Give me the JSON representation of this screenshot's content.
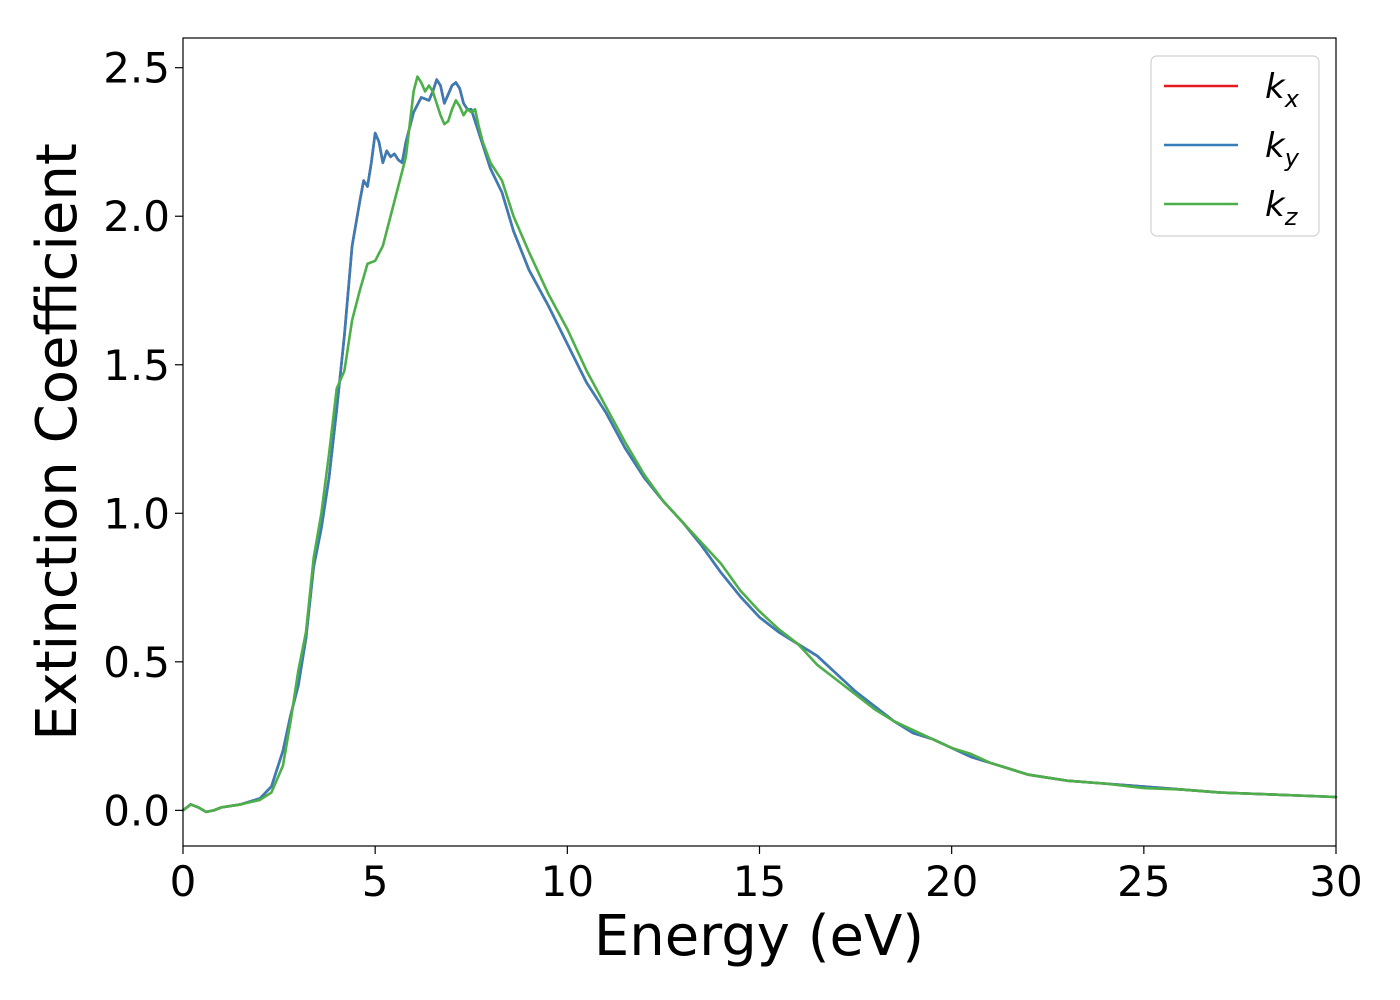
{
  "chart_data": {
    "type": "line",
    "xlabel": "Energy (eV)",
    "ylabel": "Extinction Coefficient",
    "xlim": [
      0,
      30
    ],
    "ylim": [
      -0.12,
      2.6
    ],
    "xticks": [
      0,
      5,
      10,
      15,
      20,
      25,
      30
    ],
    "xtick_labels": [
      "0",
      "5",
      "10",
      "15",
      "20",
      "25",
      "30"
    ],
    "yticks": [
      0.0,
      0.5,
      1.0,
      1.5,
      2.0,
      2.5
    ],
    "ytick_labels": [
      "0.0",
      "0.5",
      "1.0",
      "1.5",
      "2.0",
      "2.5"
    ],
    "grid": false,
    "legend_position": "top-right",
    "series": [
      {
        "name": "k_x",
        "legend_base": "k",
        "legend_sub": "x",
        "color": "#e41a1c",
        "x": [
          0,
          0.2,
          0.4,
          0.6,
          0.8,
          1.0,
          1.5,
          2.0,
          2.3,
          2.6,
          2.8,
          3.0,
          3.2,
          3.4,
          3.6,
          3.8,
          4.0,
          4.2,
          4.4,
          4.6,
          4.7,
          4.8,
          4.9,
          5.0,
          5.1,
          5.2,
          5.3,
          5.4,
          5.5,
          5.6,
          5.7,
          5.8,
          5.9,
          6.0,
          6.2,
          6.4,
          6.5,
          6.6,
          6.7,
          6.8,
          6.9,
          7.0,
          7.1,
          7.2,
          7.3,
          7.4,
          7.5,
          7.6,
          7.8,
          8.0,
          8.3,
          8.6,
          9.0,
          9.5,
          10.0,
          10.5,
          11.0,
          11.5,
          12.0,
          12.5,
          13.0,
          13.5,
          14.0,
          14.5,
          15.0,
          15.5,
          16.0,
          16.5,
          17.0,
          17.5,
          18.0,
          18.5,
          19.0,
          19.5,
          20.0,
          20.5,
          21.0,
          21.5,
          22.0,
          22.5,
          23.0,
          24.0,
          25.0,
          26.0,
          27.0,
          28.0,
          29.0,
          30.0
        ],
        "values": [
          0.0,
          0.02,
          0.01,
          -0.005,
          0.0,
          0.01,
          0.02,
          0.04,
          0.08,
          0.2,
          0.32,
          0.42,
          0.58,
          0.82,
          0.95,
          1.12,
          1.35,
          1.6,
          1.9,
          2.05,
          2.12,
          2.1,
          2.18,
          2.28,
          2.25,
          2.18,
          2.22,
          2.2,
          2.21,
          2.19,
          2.18,
          2.25,
          2.3,
          2.35,
          2.4,
          2.39,
          2.42,
          2.46,
          2.44,
          2.38,
          2.41,
          2.44,
          2.45,
          2.43,
          2.38,
          2.36,
          2.36,
          2.32,
          2.24,
          2.16,
          2.08,
          1.95,
          1.82,
          1.7,
          1.57,
          1.44,
          1.34,
          1.22,
          1.12,
          1.04,
          0.97,
          0.89,
          0.8,
          0.72,
          0.65,
          0.6,
          0.56,
          0.52,
          0.46,
          0.4,
          0.35,
          0.3,
          0.26,
          0.24,
          0.21,
          0.18,
          0.16,
          0.14,
          0.12,
          0.11,
          0.1,
          0.09,
          0.08,
          0.07,
          0.06,
          0.055,
          0.05,
          0.045
        ]
      },
      {
        "name": "k_y",
        "legend_base": "k",
        "legend_sub": "y",
        "color": "#377eb8",
        "x": [
          0,
          0.2,
          0.4,
          0.6,
          0.8,
          1.0,
          1.5,
          2.0,
          2.3,
          2.6,
          2.8,
          3.0,
          3.2,
          3.4,
          3.6,
          3.8,
          4.0,
          4.2,
          4.4,
          4.6,
          4.7,
          4.8,
          4.9,
          5.0,
          5.1,
          5.2,
          5.3,
          5.4,
          5.5,
          5.6,
          5.7,
          5.8,
          5.9,
          6.0,
          6.2,
          6.4,
          6.5,
          6.6,
          6.7,
          6.8,
          6.9,
          7.0,
          7.1,
          7.2,
          7.3,
          7.4,
          7.5,
          7.6,
          7.8,
          8.0,
          8.3,
          8.6,
          9.0,
          9.5,
          10.0,
          10.5,
          11.0,
          11.5,
          12.0,
          12.5,
          13.0,
          13.5,
          14.0,
          14.5,
          15.0,
          15.5,
          16.0,
          16.5,
          17.0,
          17.5,
          18.0,
          18.5,
          19.0,
          19.5,
          20.0,
          20.5,
          21.0,
          21.5,
          22.0,
          22.5,
          23.0,
          24.0,
          25.0,
          26.0,
          27.0,
          28.0,
          29.0,
          30.0
        ],
        "values": [
          0.0,
          0.02,
          0.01,
          -0.005,
          0.0,
          0.01,
          0.02,
          0.04,
          0.08,
          0.2,
          0.32,
          0.42,
          0.58,
          0.82,
          0.95,
          1.12,
          1.35,
          1.6,
          1.9,
          2.05,
          2.12,
          2.1,
          2.18,
          2.28,
          2.25,
          2.18,
          2.22,
          2.2,
          2.21,
          2.19,
          2.18,
          2.25,
          2.3,
          2.35,
          2.4,
          2.39,
          2.42,
          2.46,
          2.44,
          2.38,
          2.41,
          2.44,
          2.45,
          2.43,
          2.38,
          2.36,
          2.36,
          2.32,
          2.24,
          2.16,
          2.08,
          1.95,
          1.82,
          1.7,
          1.57,
          1.44,
          1.34,
          1.22,
          1.12,
          1.04,
          0.97,
          0.89,
          0.8,
          0.72,
          0.65,
          0.6,
          0.56,
          0.52,
          0.46,
          0.4,
          0.35,
          0.3,
          0.26,
          0.24,
          0.21,
          0.18,
          0.16,
          0.14,
          0.12,
          0.11,
          0.1,
          0.09,
          0.08,
          0.07,
          0.06,
          0.055,
          0.05,
          0.045
        ]
      },
      {
        "name": "k_z",
        "legend_base": "k",
        "legend_sub": "z",
        "color": "#4daf4a",
        "x": [
          0,
          0.2,
          0.4,
          0.6,
          0.8,
          1.0,
          1.5,
          2.0,
          2.3,
          2.6,
          2.8,
          3.0,
          3.2,
          3.4,
          3.6,
          3.8,
          4.0,
          4.2,
          4.4,
          4.6,
          4.8,
          5.0,
          5.2,
          5.4,
          5.6,
          5.8,
          6.0,
          6.1,
          6.2,
          6.3,
          6.4,
          6.5,
          6.6,
          6.7,
          6.8,
          6.9,
          7.0,
          7.1,
          7.2,
          7.3,
          7.4,
          7.5,
          7.6,
          7.7,
          7.8,
          8.0,
          8.3,
          8.6,
          9.0,
          9.5,
          10.0,
          10.5,
          11.0,
          11.5,
          12.0,
          12.5,
          13.0,
          13.5,
          14.0,
          14.5,
          15.0,
          15.5,
          16.0,
          16.5,
          17.0,
          17.5,
          18.0,
          18.5,
          19.0,
          19.5,
          20.0,
          20.5,
          21.0,
          21.5,
          22.0,
          22.5,
          23.0,
          24.0,
          25.0,
          26.0,
          27.0,
          28.0,
          29.0,
          30.0
        ],
        "values": [
          0.0,
          0.02,
          0.01,
          -0.005,
          0.0,
          0.01,
          0.02,
          0.035,
          0.06,
          0.15,
          0.3,
          0.47,
          0.6,
          0.85,
          1.0,
          1.2,
          1.42,
          1.48,
          1.65,
          1.75,
          1.84,
          1.85,
          1.9,
          2.0,
          2.1,
          2.2,
          2.42,
          2.47,
          2.45,
          2.42,
          2.44,
          2.42,
          2.38,
          2.34,
          2.31,
          2.32,
          2.36,
          2.39,
          2.37,
          2.34,
          2.36,
          2.35,
          2.36,
          2.3,
          2.25,
          2.18,
          2.12,
          2.0,
          1.88,
          1.74,
          1.62,
          1.48,
          1.36,
          1.24,
          1.13,
          1.04,
          0.97,
          0.9,
          0.83,
          0.74,
          0.67,
          0.61,
          0.56,
          0.49,
          0.44,
          0.39,
          0.34,
          0.3,
          0.27,
          0.24,
          0.21,
          0.19,
          0.16,
          0.14,
          0.12,
          0.11,
          0.1,
          0.09,
          0.075,
          0.07,
          0.06,
          0.055,
          0.05,
          0.045
        ]
      }
    ]
  }
}
